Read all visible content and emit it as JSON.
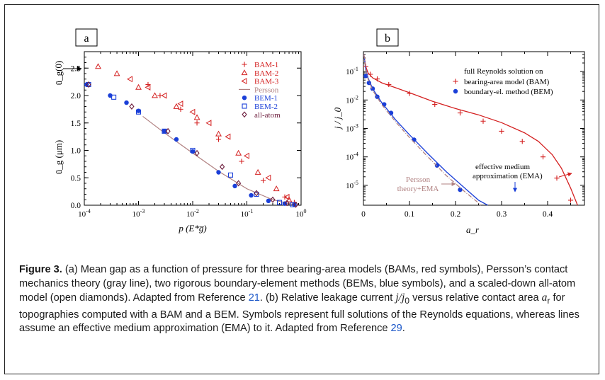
{
  "caption": {
    "label": "Figure 3.",
    "part1": " (a) Mean gap as a function of pressure for three bearing-area models (BAMs, red symbols), Persson’s contact mechanics theory (gray line), two rigorous boundary-element methods (BEMs, blue symbols), and a scaled-down all-atom model (open diamonds). Adapted from Reference ",
    "ref1": "21",
    "part2": ". (b) Relative leakage current ",
    "jj0": "j/j",
    "jj0_sub": "0",
    "part3": " versus relative contact area ",
    "ar": "a",
    "ar_sub": "r",
    "part4": " for topographies computed with a BAM and a BEM. Symbols represent full solutions of the Reynolds equations, whereas lines assume an effective medium approximation (EMA) to it. Adapted from Reference ",
    "ref2": "29",
    "part5": "."
  },
  "colors": {
    "red": "#d42020",
    "blue": "#1a3fd8",
    "persson": "#b08080",
    "diamond": "#6b1a3a"
  },
  "chart_data": [
    {
      "panel_label": "a",
      "type": "scatter",
      "xscale": "log",
      "xlim": [
        0.0001,
        1
      ],
      "ylim": [
        0,
        2.8
      ],
      "xlabel": "p (E*g̅)",
      "ylabel": "ū_g (μm)",
      "ylabel_top": "ū_g(0)",
      "xticks": [
        "10^-4",
        "10^-3",
        "10^-2",
        "10^-1",
        "10^0"
      ],
      "yticks": [
        "0.0",
        "0.5",
        "1.0",
        "1.5",
        "2.0",
        "2.5"
      ],
      "legend_position": "top-right",
      "series": [
        {
          "name": "BAM-1",
          "marker": "plus",
          "color": "red",
          "x": [
            0.0015,
            0.0025,
            0.006,
            0.012,
            0.03,
            0.08,
            0.2,
            0.5,
            0.75
          ],
          "y": [
            2.2,
            2.0,
            1.75,
            1.5,
            1.2,
            0.8,
            0.45,
            0.15,
            0.05
          ]
        },
        {
          "name": "BAM-2",
          "marker": "triangle-up",
          "color": "red",
          "x": [
            0.00018,
            0.0004,
            0.001,
            0.002,
            0.005,
            0.012,
            0.03,
            0.07,
            0.16,
            0.35,
            0.6
          ],
          "y": [
            2.53,
            2.4,
            2.15,
            2.0,
            1.8,
            1.6,
            1.3,
            0.95,
            0.6,
            0.3,
            0.1
          ]
        },
        {
          "name": "BAM-3",
          "marker": "triangle-left",
          "color": "red",
          "x": [
            0.0007,
            0.0015,
            0.003,
            0.006,
            0.01,
            0.02,
            0.045,
            0.1,
            0.25,
            0.55
          ],
          "y": [
            2.3,
            2.15,
            2.0,
            1.85,
            1.7,
            1.5,
            1.25,
            0.9,
            0.5,
            0.15
          ]
        },
        {
          "name": "Persson",
          "marker": "line",
          "color": "persson",
          "x": [
            0.0012,
            0.003,
            0.01,
            0.03,
            0.1,
            0.3,
            0.6,
            0.9
          ],
          "y": [
            1.62,
            1.32,
            0.95,
            0.62,
            0.3,
            0.1,
            0.03,
            0.0
          ]
        },
        {
          "name": "BEM-1",
          "marker": "circle",
          "color": "blue",
          "x": [
            0.00011,
            0.0003,
            0.0006,
            0.001,
            0.003,
            0.005,
            0.01,
            0.03,
            0.06,
            0.12,
            0.25,
            0.5,
            0.75
          ],
          "y": [
            2.2,
            2.0,
            1.87,
            1.72,
            1.35,
            1.2,
            0.98,
            0.6,
            0.35,
            0.18,
            0.08,
            0.03,
            0.01
          ]
        },
        {
          "name": "BEM-2",
          "marker": "square",
          "color": "blue",
          "x": [
            0.00012,
            0.00035,
            0.001,
            0.003,
            0.01,
            0.05,
            0.15,
            0.4,
            0.7
          ],
          "y": [
            2.2,
            1.97,
            1.7,
            1.35,
            1.0,
            0.55,
            0.2,
            0.05,
            0.01
          ]
        },
        {
          "name": "all-atom",
          "marker": "diamond",
          "color": "diamond",
          "x": [
            0.00012,
            0.00075,
            0.0035,
            0.012,
            0.035,
            0.07,
            0.15,
            0.3,
            0.55,
            0.8
          ],
          "y": [
            2.2,
            1.8,
            1.35,
            0.95,
            0.7,
            0.4,
            0.22,
            0.1,
            0.04,
            0.01
          ]
        }
      ]
    },
    {
      "panel_label": "b",
      "type": "line",
      "yscale": "log",
      "xlim": [
        0,
        0.48
      ],
      "ylim": [
        2e-06,
        0.5
      ],
      "xlabel": "a_r",
      "ylabel": "j / j_0",
      "xticks": [
        "0",
        "0.1",
        "0.2",
        "0.3",
        "0.4"
      ],
      "yticks": [
        "10^-1",
        "10^-2",
        "10^-3",
        "10^-4",
        "10^-5"
      ],
      "legend_title": "full Reynolds solution on",
      "legend_position": "top-right",
      "annotations": {
        "ema": "effective medium",
        "ema2": "approximation (EMA)",
        "persson1": "Persson",
        "persson2": "theory+EMA"
      },
      "series": [
        {
          "name": "bearing-area model (BAM)",
          "marker": "plus",
          "color": "red",
          "x": [
            0.005,
            0.015,
            0.03,
            0.055,
            0.1,
            0.155,
            0.21,
            0.26,
            0.3,
            0.345,
            0.39,
            0.42,
            0.45
          ],
          "y": [
            0.15,
            0.08,
            0.055,
            0.035,
            0.017,
            0.007,
            0.0035,
            0.0018,
            0.0008,
            0.00035,
            0.0001,
            1.8e-05,
            3e-06
          ]
        },
        {
          "name": "boundary-el. method (BEM)",
          "marker": "circle",
          "color": "blue",
          "x": [
            0.005,
            0.012,
            0.02,
            0.03,
            0.045,
            0.06,
            0.11,
            0.16,
            0.21
          ],
          "y": [
            0.07,
            0.04,
            0.025,
            0.013,
            0.007,
            0.0035,
            0.0004,
            5e-05,
            7e-06
          ]
        },
        {
          "name": "BAM EMA",
          "marker": "line",
          "color": "red",
          "x": [
            0.001,
            0.005,
            0.01,
            0.02,
            0.04,
            0.07,
            0.1,
            0.15,
            0.2,
            0.25,
            0.3,
            0.35,
            0.38,
            0.41,
            0.43,
            0.45,
            0.465
          ],
          "y": [
            0.4,
            0.15,
            0.09,
            0.06,
            0.04,
            0.027,
            0.018,
            0.009,
            0.005,
            0.003,
            0.0016,
            0.0007,
            0.00035,
            0.00012,
            4e-05,
            8e-06,
            2e-06
          ]
        },
        {
          "name": "BEM EMA",
          "marker": "line",
          "color": "blue",
          "x": [
            0.001,
            0.005,
            0.01,
            0.02,
            0.04,
            0.07,
            0.1,
            0.14,
            0.18,
            0.22,
            0.25,
            0.27
          ],
          "y": [
            0.4,
            0.12,
            0.06,
            0.025,
            0.008,
            0.002,
            0.0006,
            0.00013,
            3e-05,
            8e-06,
            3e-06,
            2e-06
          ]
        },
        {
          "name": "Persson theory+EMA",
          "marker": "dash-dot",
          "color": "persson",
          "x": [
            0.001,
            0.005,
            0.01,
            0.02,
            0.04,
            0.07,
            0.1,
            0.14,
            0.18,
            0.22,
            0.245,
            0.255
          ],
          "y": [
            0.4,
            0.11,
            0.055,
            0.022,
            0.0068,
            0.0017,
            0.00048,
            0.0001,
            2.2e-05,
            6e-06,
            2.8e-06,
            2e-06
          ]
        }
      ]
    }
  ]
}
